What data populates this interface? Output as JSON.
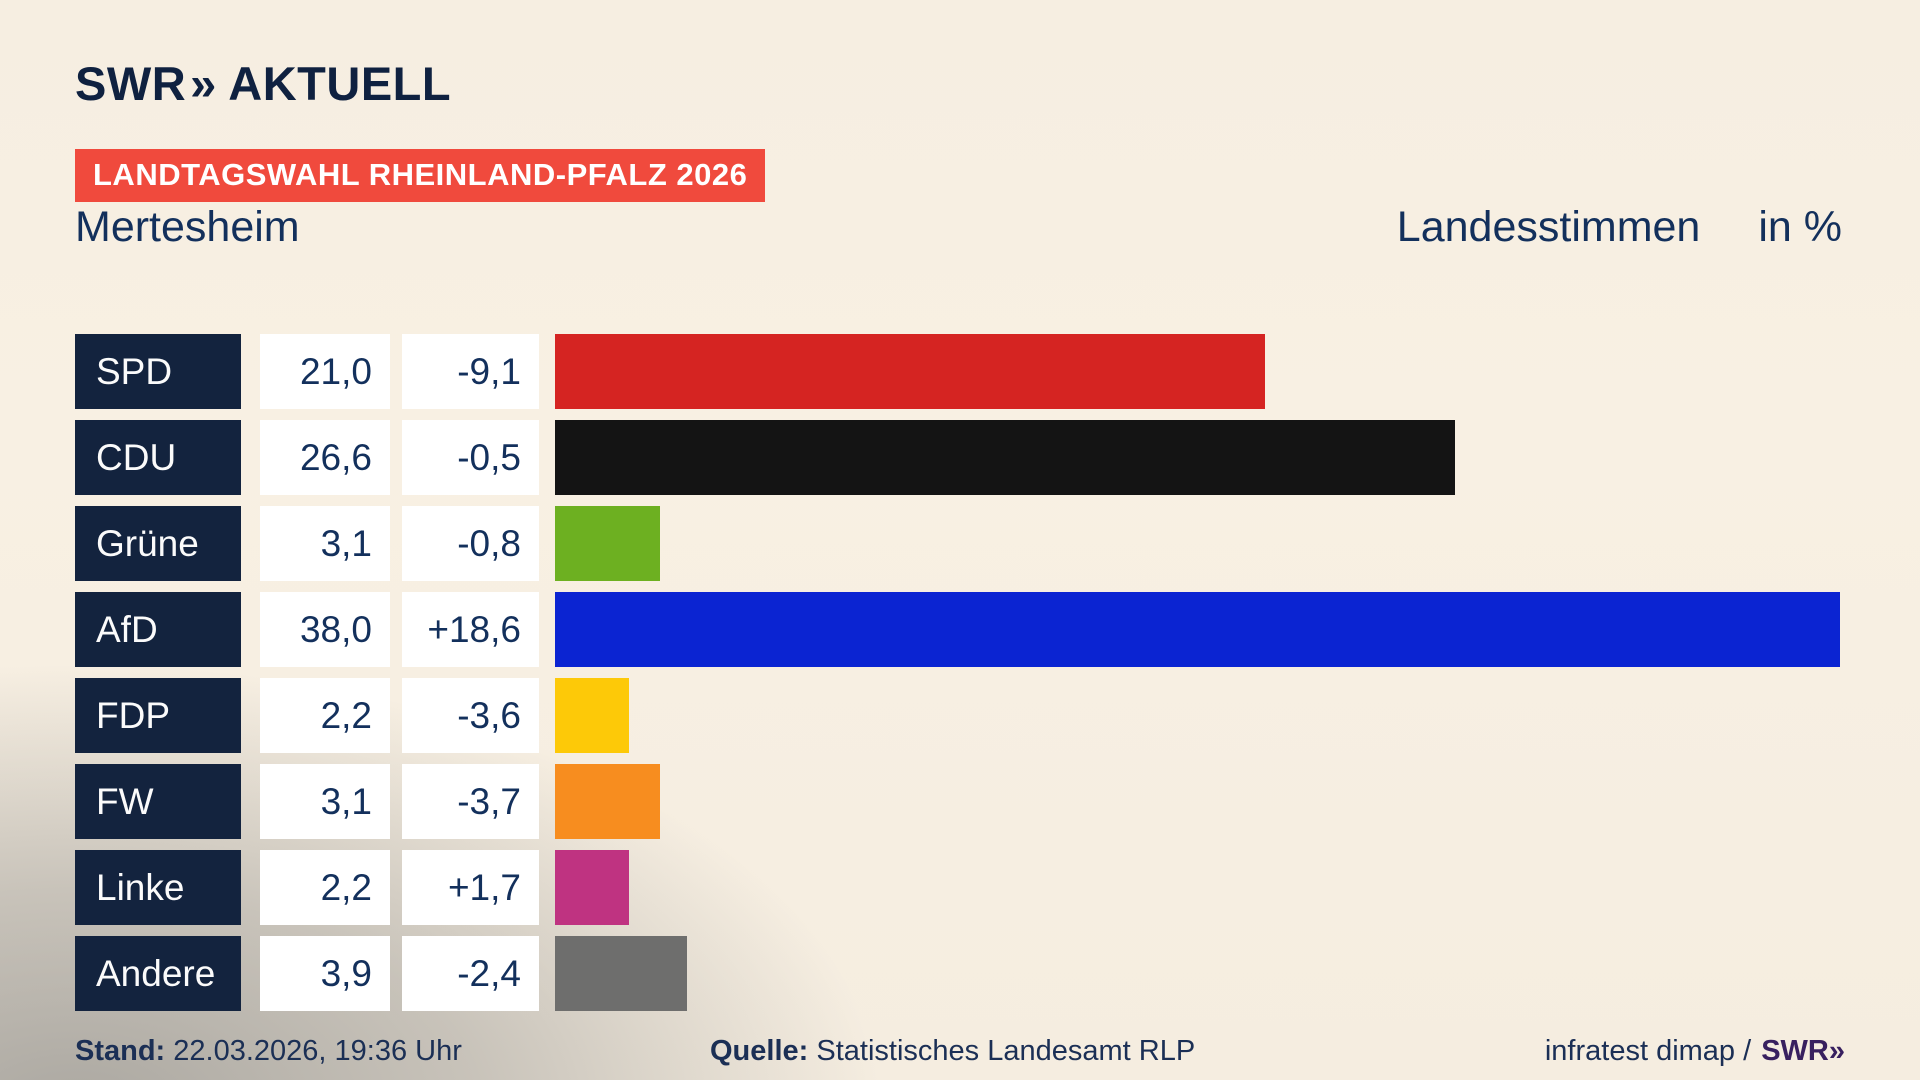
{
  "header": {
    "logo_brand": "SWR",
    "logo_chevrons": "»",
    "logo_suffix": "AKTUELL",
    "banner": "LANDTAGSWAHL RHEINLAND-PFALZ 2026",
    "title_left": "Mertesheim",
    "title_right": "Landesstimmen",
    "title_unit": "in %"
  },
  "chart_data": {
    "type": "bar",
    "orientation": "horizontal",
    "title": "Mertesheim – Landesstimmen in %",
    "unit": "%",
    "xlim": [
      0,
      38
    ],
    "categories": [
      "SPD",
      "CDU",
      "Grüne",
      "AfD",
      "FDP",
      "FW",
      "Linke",
      "Andere"
    ],
    "values": [
      21.0,
      26.6,
      3.1,
      38.0,
      2.2,
      3.1,
      2.2,
      3.9
    ],
    "value_labels": [
      "21,0",
      "26,6",
      "3,1",
      "38,0",
      "2,2",
      "3,1",
      "2,2",
      "3,9"
    ],
    "change_labels": [
      "-9,1",
      "-0,5",
      "-0,8",
      "+18,6",
      "-3,6",
      "-3,7",
      "+1,7",
      "-2,4"
    ],
    "bar_colors": [
      "#d52422",
      "#141414",
      "#6db021",
      "#0b24d2",
      "#fdc908",
      "#f78d1f",
      "#bf3381",
      "#6e6e6d"
    ],
    "legend": "none",
    "grid": "off"
  },
  "footer": {
    "stand_label": "Stand:",
    "stand_value": "22.03.2026, 19:36 Uhr",
    "quelle_label": "Quelle:",
    "quelle_value": "Statistisches Landesamt RLP",
    "credit_text": "infratest dimap /",
    "credit_brand_name": "SWR",
    "credit_brand_chevrons": "»"
  },
  "colors": {
    "background_cream": "#f7efe2",
    "background_gray": "#a3a09a",
    "banner_red": "#f04a3d",
    "navy_box": "#13233e",
    "navy_text": "#13305c",
    "value_box_white": "#ffffff",
    "brand_purple": "#38205f"
  }
}
